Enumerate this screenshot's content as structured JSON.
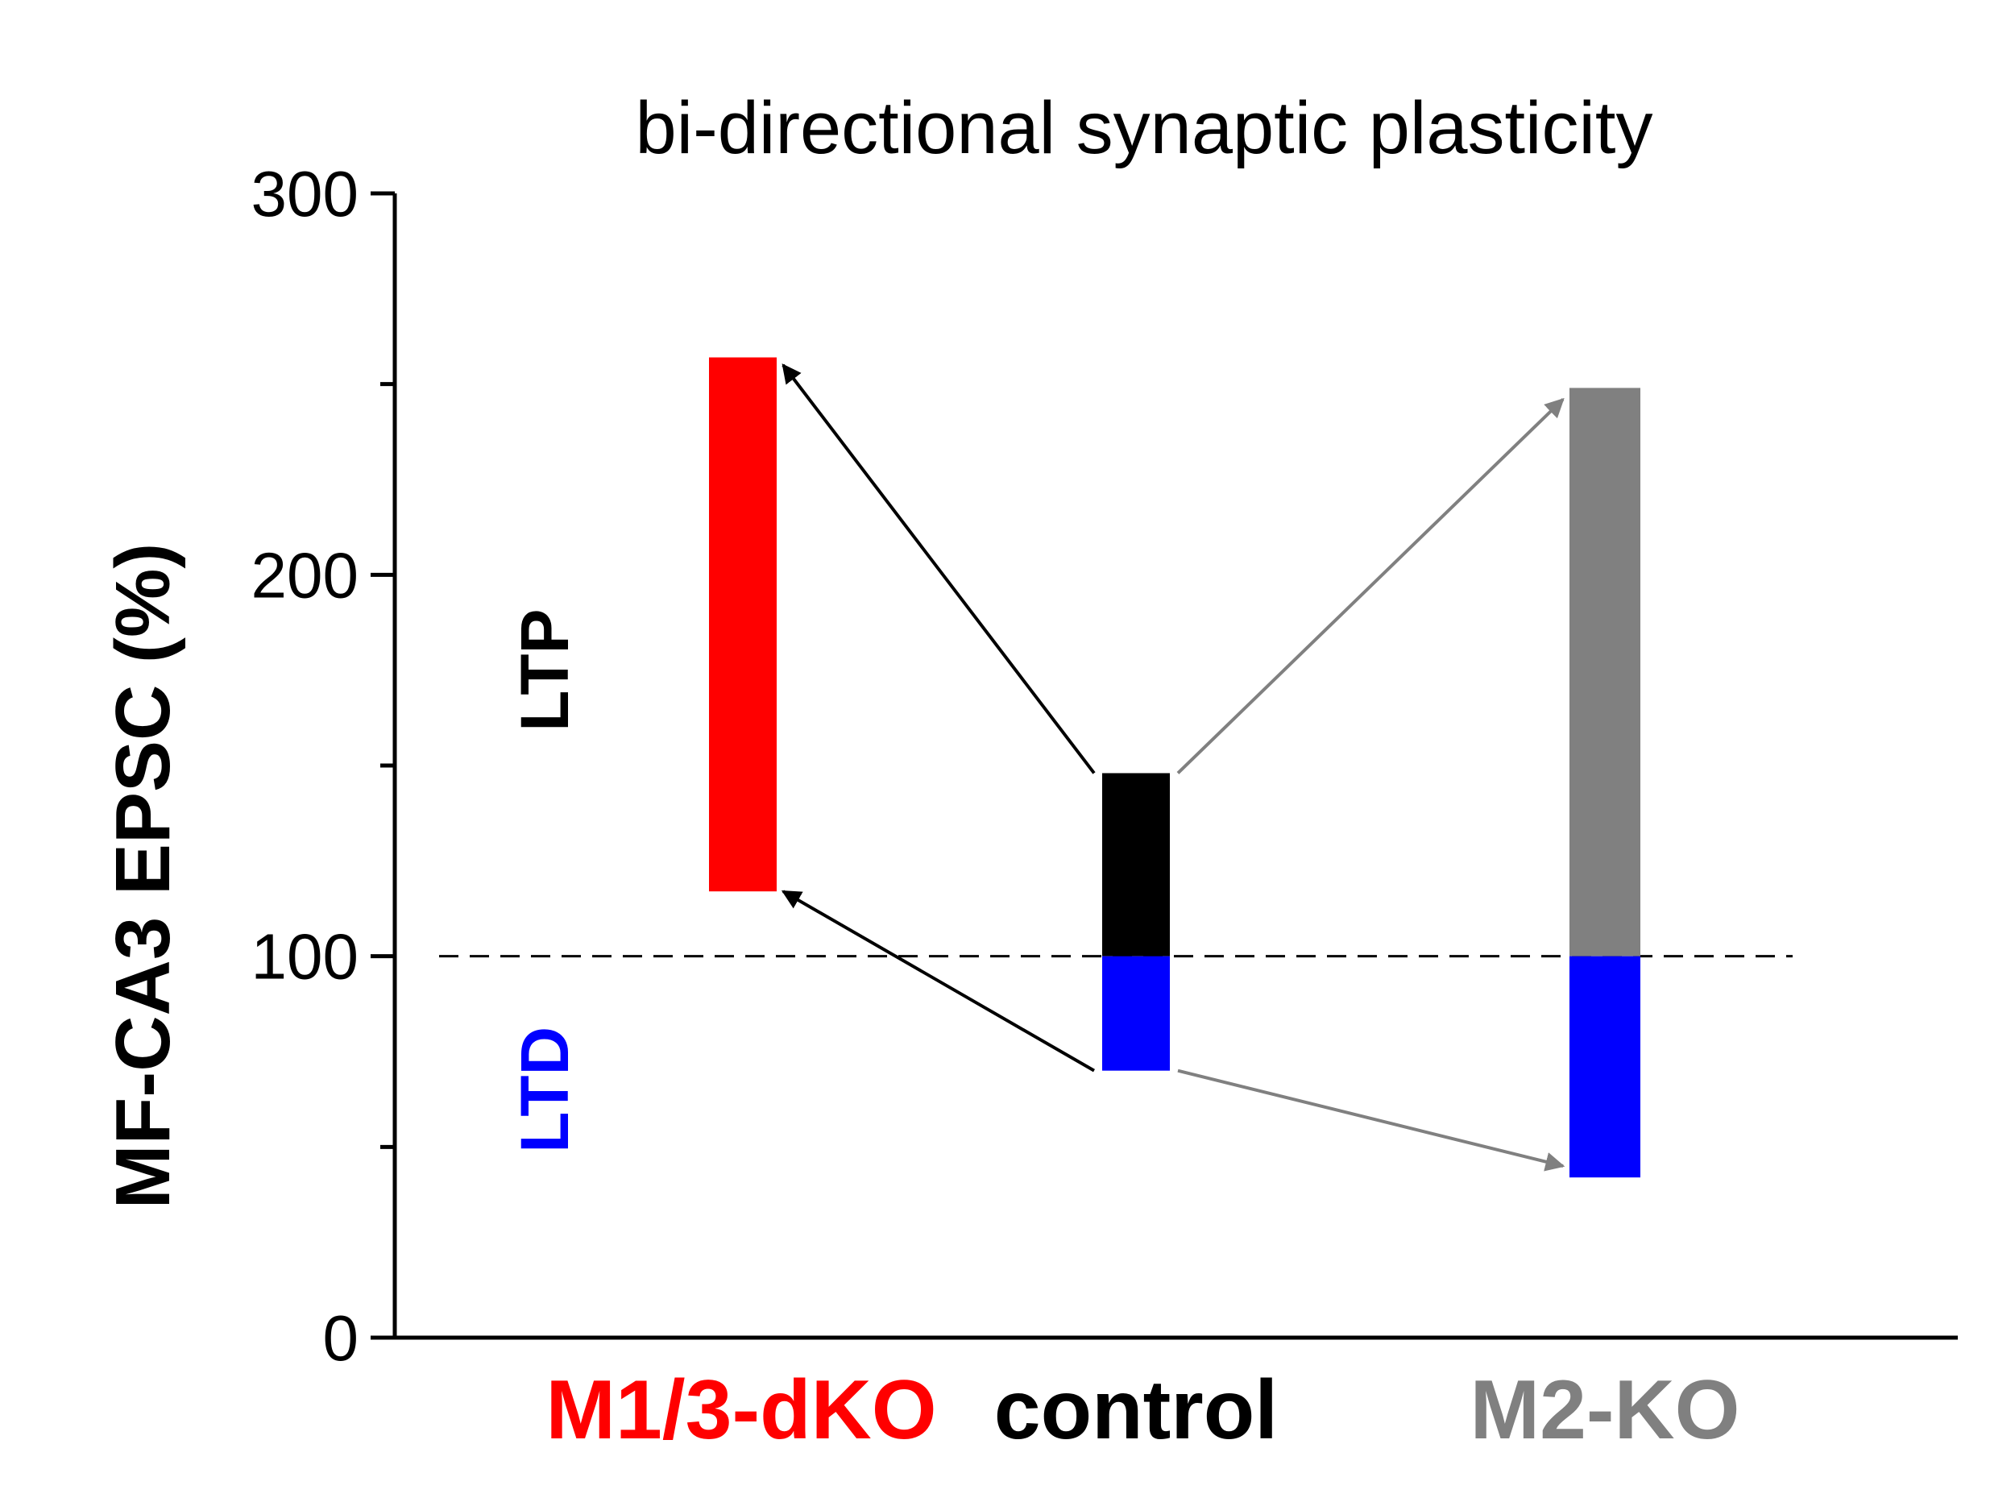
{
  "chart_data": {
    "type": "floating-bar",
    "title": "bi-directional synaptic plasticity",
    "xlabel": "",
    "ylabel": "MF-CA3 EPSC (%)",
    "ylim": [
      0,
      300
    ],
    "yticks": [
      0,
      100,
      200,
      300
    ],
    "yticks_minor": [
      50,
      150,
      250
    ],
    "baseline": 100,
    "categories": [
      "M1/3-dKO",
      "control",
      "M2-KO"
    ],
    "category_colors": [
      "#ff0000",
      "#000000",
      "#808080"
    ],
    "series": [
      {
        "name": "LTP",
        "color_by_category": [
          "#ff0000",
          "#000000",
          "#808080"
        ],
        "low": [
          117,
          100,
          100
        ],
        "high": [
          257,
          148,
          249
        ]
      },
      {
        "name": "LTD",
        "color": "#0000ff",
        "low": [
          null,
          70,
          42
        ],
        "high": [
          null,
          100,
          100
        ]
      }
    ],
    "arrows": [
      {
        "from_category": "control",
        "from_value": 148,
        "to_category": "M1/3-dKO",
        "to_value": 255,
        "color": "#000000"
      },
      {
        "from_category": "control",
        "from_value": 70,
        "to_category": "M1/3-dKO",
        "to_value": 117,
        "color": "#000000"
      },
      {
        "from_category": "control",
        "from_value": 148,
        "to_category": "M2-KO",
        "to_value": 246,
        "color": "#808080"
      },
      {
        "from_category": "control",
        "from_value": 70,
        "to_category": "M2-KO",
        "to_value": 45,
        "color": "#808080"
      }
    ],
    "annotations": [
      {
        "text": "LTP",
        "value": 175,
        "color": "#000000"
      },
      {
        "text": "LTD",
        "value": 65,
        "color": "#0000ff"
      }
    ]
  }
}
